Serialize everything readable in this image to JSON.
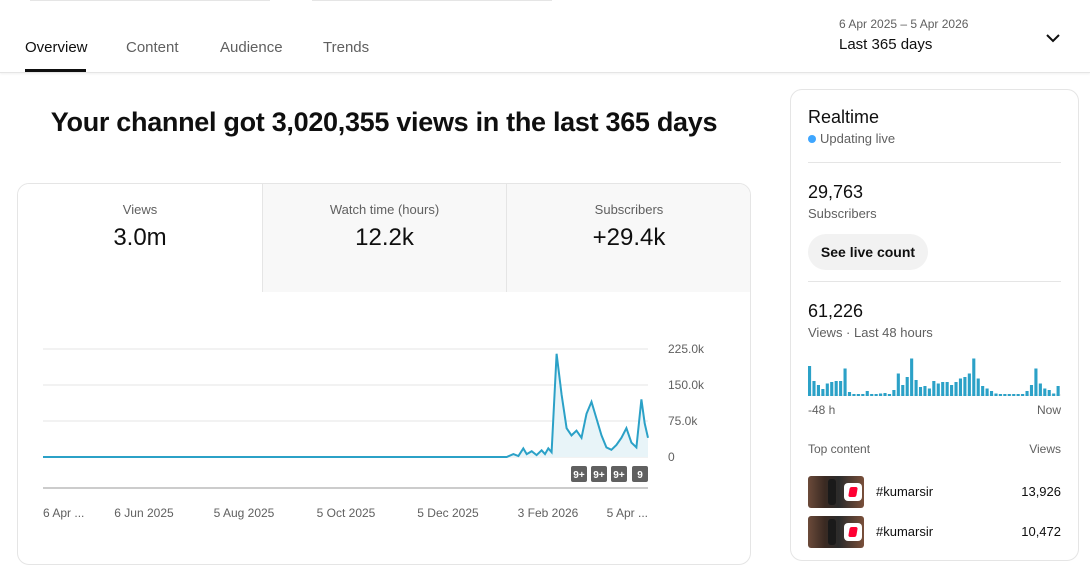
{
  "tabs": [
    {
      "label": "Overview"
    },
    {
      "label": "Content"
    },
    {
      "label": "Audience"
    },
    {
      "label": "Trends"
    }
  ],
  "date_picker": {
    "range": "6 Apr 2025 – 5 Apr 2026",
    "label": "Last 365 days",
    "icon": "chevron-down-icon"
  },
  "headline": "Your channel got 3,020,355 views in the last 365 days",
  "metrics": [
    {
      "label": "Views",
      "value": "3.0m"
    },
    {
      "label": "Watch time (hours)",
      "value": "12.2k"
    },
    {
      "label": "Subscribers",
      "value": "+29.4k"
    }
  ],
  "chart_data": {
    "type": "line",
    "x_labels": [
      "6 Apr ...",
      "6 Jun 2025",
      "5 Aug 2025",
      "5 Oct 2025",
      "5 Dec 2025",
      "3 Feb 2026",
      "5 Apr ..."
    ],
    "y_ticks": [
      "225.0k",
      "150.0k",
      "75.0k",
      "0"
    ],
    "ylim": [
      0,
      225000
    ],
    "series_color": "#2ba1c7",
    "x_start": "2025-04-06",
    "x_end": "2026-04-05",
    "points": [
      [
        "2025-04-06",
        0
      ],
      [
        "2026-01-10",
        0
      ],
      [
        "2026-01-14",
        6000
      ],
      [
        "2026-01-17",
        2000
      ],
      [
        "2026-01-20",
        18000
      ],
      [
        "2026-01-22",
        6000
      ],
      [
        "2026-01-25",
        12000
      ],
      [
        "2026-01-28",
        4000
      ],
      [
        "2026-01-31",
        14000
      ],
      [
        "2026-02-02",
        6000
      ],
      [
        "2026-02-04",
        18000
      ],
      [
        "2026-02-06",
        10000
      ],
      [
        "2026-02-09",
        215000
      ],
      [
        "2026-02-12",
        130000
      ],
      [
        "2026-02-15",
        60000
      ],
      [
        "2026-02-18",
        45000
      ],
      [
        "2026-02-21",
        55000
      ],
      [
        "2026-02-24",
        40000
      ],
      [
        "2026-02-27",
        90000
      ],
      [
        "2026-03-02",
        115000
      ],
      [
        "2026-03-05",
        80000
      ],
      [
        "2026-03-08",
        45000
      ],
      [
        "2026-03-11",
        20000
      ],
      [
        "2026-03-14",
        15000
      ],
      [
        "2026-03-17",
        25000
      ],
      [
        "2026-03-20",
        40000
      ],
      [
        "2026-03-23",
        60000
      ],
      [
        "2026-03-26",
        30000
      ],
      [
        "2026-03-29",
        20000
      ],
      [
        "2026-04-01",
        120000
      ],
      [
        "2026-04-03",
        70000
      ],
      [
        "2026-04-05",
        40000
      ]
    ],
    "badges": [
      "9+",
      "9+",
      "9+",
      "9"
    ]
  },
  "realtime": {
    "title": "Realtime",
    "status": "Updating live",
    "subscribers": "29,763",
    "subscribers_label": "Subscribers",
    "live_button": "See live count",
    "views": "61,226",
    "views_label": "Views · Last 48 hours",
    "bars_color": "#2ba1c7",
    "bars": [
      60,
      30,
      22,
      14,
      25,
      28,
      30,
      30,
      55,
      8,
      4,
      4,
      3,
      10,
      3,
      4,
      5,
      6,
      3,
      12,
      45,
      22,
      38,
      75,
      32,
      18,
      20,
      15,
      30,
      25,
      28,
      28,
      22,
      28,
      35,
      38,
      45,
      75,
      35,
      20,
      15,
      10,
      5,
      3,
      4,
      4,
      3,
      4,
      3,
      10,
      22,
      55,
      25,
      15,
      12,
      5,
      20
    ],
    "start_label": "-48 h",
    "end_label": "Now",
    "top_content_label": "Top content",
    "top_views_label": "Views",
    "top_content": [
      {
        "title": "#kumarsir",
        "views": "13,926"
      },
      {
        "title": "#kumarsir",
        "views": "10,472"
      }
    ]
  }
}
